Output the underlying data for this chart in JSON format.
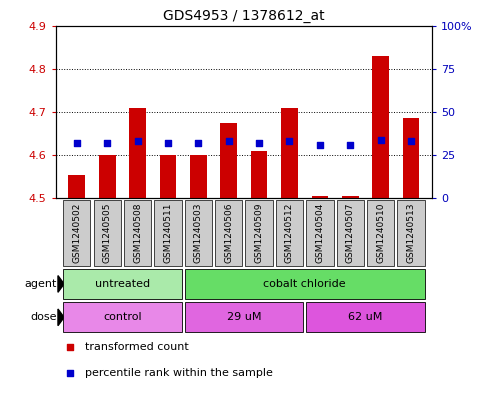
{
  "title": "GDS4953 / 1378612_at",
  "samples": [
    "GSM1240502",
    "GSM1240505",
    "GSM1240508",
    "GSM1240511",
    "GSM1240503",
    "GSM1240506",
    "GSM1240509",
    "GSM1240512",
    "GSM1240504",
    "GSM1240507",
    "GSM1240510",
    "GSM1240513"
  ],
  "bar_values": [
    4.555,
    4.6,
    4.71,
    4.6,
    4.6,
    4.675,
    4.61,
    4.71,
    4.505,
    4.505,
    4.83,
    4.685
  ],
  "bar_bottom": 4.5,
  "blue_dot_percentile": [
    32,
    32,
    33,
    32,
    32,
    33,
    32,
    33,
    31,
    31,
    34,
    33
  ],
  "ylim_left": [
    4.5,
    4.9
  ],
  "ylim_right": [
    0,
    100
  ],
  "yticks_left": [
    4.5,
    4.6,
    4.7,
    4.8,
    4.9
  ],
  "yticks_right": [
    0,
    25,
    50,
    75,
    100
  ],
  "ytick_labels_right": [
    "0",
    "25",
    "50",
    "75",
    "100%"
  ],
  "bar_color": "#cc0000",
  "blue_color": "#0000cc",
  "agent_groups": [
    {
      "label": "untreated",
      "span": [
        0,
        4
      ],
      "color": "#aaeaaa"
    },
    {
      "label": "cobalt chloride",
      "span": [
        4,
        12
      ],
      "color": "#66dd66"
    }
  ],
  "dose_groups": [
    {
      "label": "control",
      "span": [
        0,
        4
      ],
      "color": "#e888e8"
    },
    {
      "label": "29 uM",
      "span": [
        4,
        8
      ],
      "color": "#e066e0"
    },
    {
      "label": "62 uM",
      "span": [
        8,
        12
      ],
      "color": "#dd55dd"
    }
  ],
  "legend_items": [
    {
      "label": "transformed count",
      "color": "#cc0000"
    },
    {
      "label": "percentile rank within the sample",
      "color": "#0000cc"
    }
  ],
  "agent_label": "agent",
  "dose_label": "dose",
  "bar_width": 0.55,
  "background_color": "#ffffff",
  "plot_bg": "#ffffff",
  "left_tick_color": "#cc0000",
  "right_tick_color": "#0000bb",
  "gray_box_color": "#cccccc",
  "n_samples": 12
}
